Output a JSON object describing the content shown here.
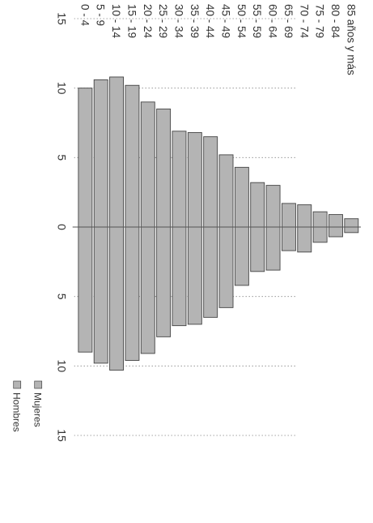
{
  "chart_data": {
    "type": "bar",
    "orientation": "population-pyramid",
    "categories": [
      "85 años y más",
      "80 - 84",
      "75 - 79",
      "70 - 74",
      "65 - 69",
      "60 - 64",
      "55 - 59",
      "50 - 54",
      "45 - 49",
      "40 - 44",
      "35 - 39",
      "30 - 34",
      "25 - 29",
      "20 - 24",
      "15 - 19",
      "10 - 14",
      "5 - 9",
      "0 - 4"
    ],
    "series": [
      {
        "name": "Mujeres",
        "values": [
          0.6,
          0.9,
          1.1,
          1.6,
          1.7,
          3.0,
          3.2,
          4.3,
          5.2,
          6.5,
          6.8,
          6.9,
          8.5,
          9.0,
          10.2,
          10.8,
          10.6,
          10.0
        ]
      },
      {
        "name": "Hombres",
        "values": [
          0.4,
          0.7,
          1.1,
          1.8,
          1.7,
          3.1,
          3.2,
          4.2,
          5.8,
          6.5,
          7.0,
          7.1,
          7.9,
          9.1,
          9.6,
          10.3,
          9.8,
          9.0
        ]
      }
    ],
    "x_ticks": [
      "15",
      "10",
      "5",
      "0",
      "5",
      "10",
      "15"
    ],
    "xlim": [
      -15,
      15
    ],
    "grid": true,
    "legend_position": "bottom",
    "bar_color": "#b4b4b4",
    "line_color": "#444444"
  }
}
